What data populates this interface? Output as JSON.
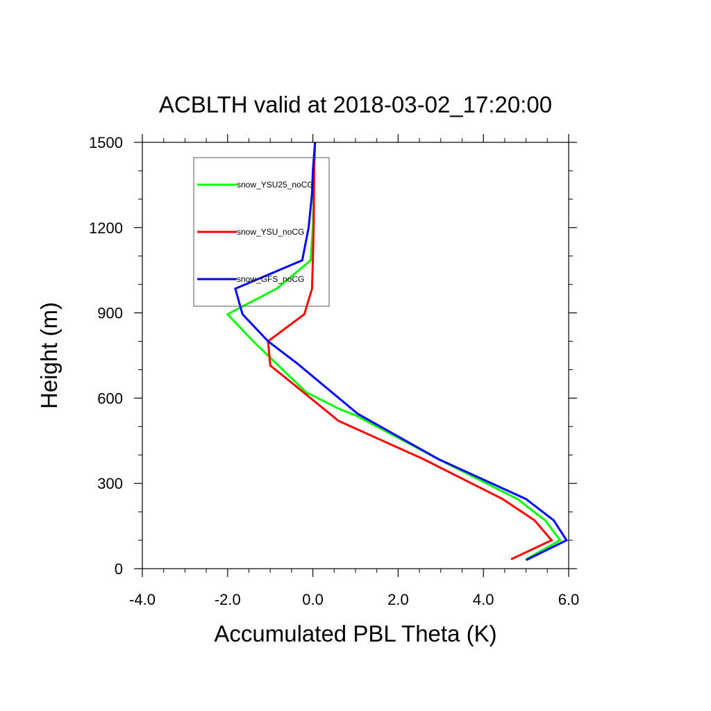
{
  "chart_data": {
    "type": "line",
    "title": "ACBLTH valid at 2018-03-02_17:20:00",
    "xlabel": "Accumulated PBL Theta (K)",
    "ylabel": "Height (m)",
    "xlim": [
      -4.0,
      6.0
    ],
    "ylim": [
      0,
      1500
    ],
    "xticks": [
      -4.0,
      -2.0,
      0.0,
      2.0,
      4.0,
      6.0
    ],
    "xtick_labels": [
      "-4.0",
      "-2.0",
      "0.0",
      "2.0",
      "4.0",
      "6.0"
    ],
    "yticks": [
      0,
      300,
      600,
      900,
      1200,
      1500
    ],
    "ytick_labels": [
      "0",
      "300",
      "600",
      "900",
      "1200",
      "1500"
    ],
    "grid": false,
    "legend_position": "top-left",
    "series": [
      {
        "name": "snow_YSU25_noCG",
        "color": "#00ff00",
        "x": [
          5.0,
          5.8,
          5.45,
          4.8,
          2.95,
          1.0,
          0.65,
          -0.15,
          -1.4,
          -2.0,
          -0.85,
          -0.05,
          0.0,
          0.02,
          0.03,
          0.05
        ],
        "y": [
          33,
          100,
          170,
          245,
          385,
          540,
          560,
          620,
          800,
          895,
          985,
          1085,
          1200,
          1320,
          1400,
          1500
        ]
      },
      {
        "name": "snow_YSU_noCG",
        "color": "#ff0000",
        "x": [
          4.65,
          5.6,
          5.2,
          4.45,
          2.6,
          0.6,
          -0.3,
          -1.0,
          -1.05,
          -0.2,
          -0.02,
          0.0,
          0.02,
          0.03,
          0.05
        ],
        "y": [
          33,
          100,
          170,
          245,
          385,
          520,
          630,
          715,
          800,
          895,
          985,
          1085,
          1200,
          1400,
          1500
        ]
      },
      {
        "name": "snow_GFS_noCG",
        "color": "#0000ff",
        "x": [
          5.0,
          5.95,
          5.65,
          5.0,
          2.95,
          1.05,
          -0.35,
          -1.05,
          -1.65,
          -1.82,
          -0.25,
          -0.1,
          -0.02,
          0.0,
          0.05
        ],
        "y": [
          30,
          100,
          170,
          245,
          385,
          545,
          720,
          800,
          895,
          985,
          1085,
          1200,
          1320,
          1400,
          1500
        ]
      }
    ]
  }
}
